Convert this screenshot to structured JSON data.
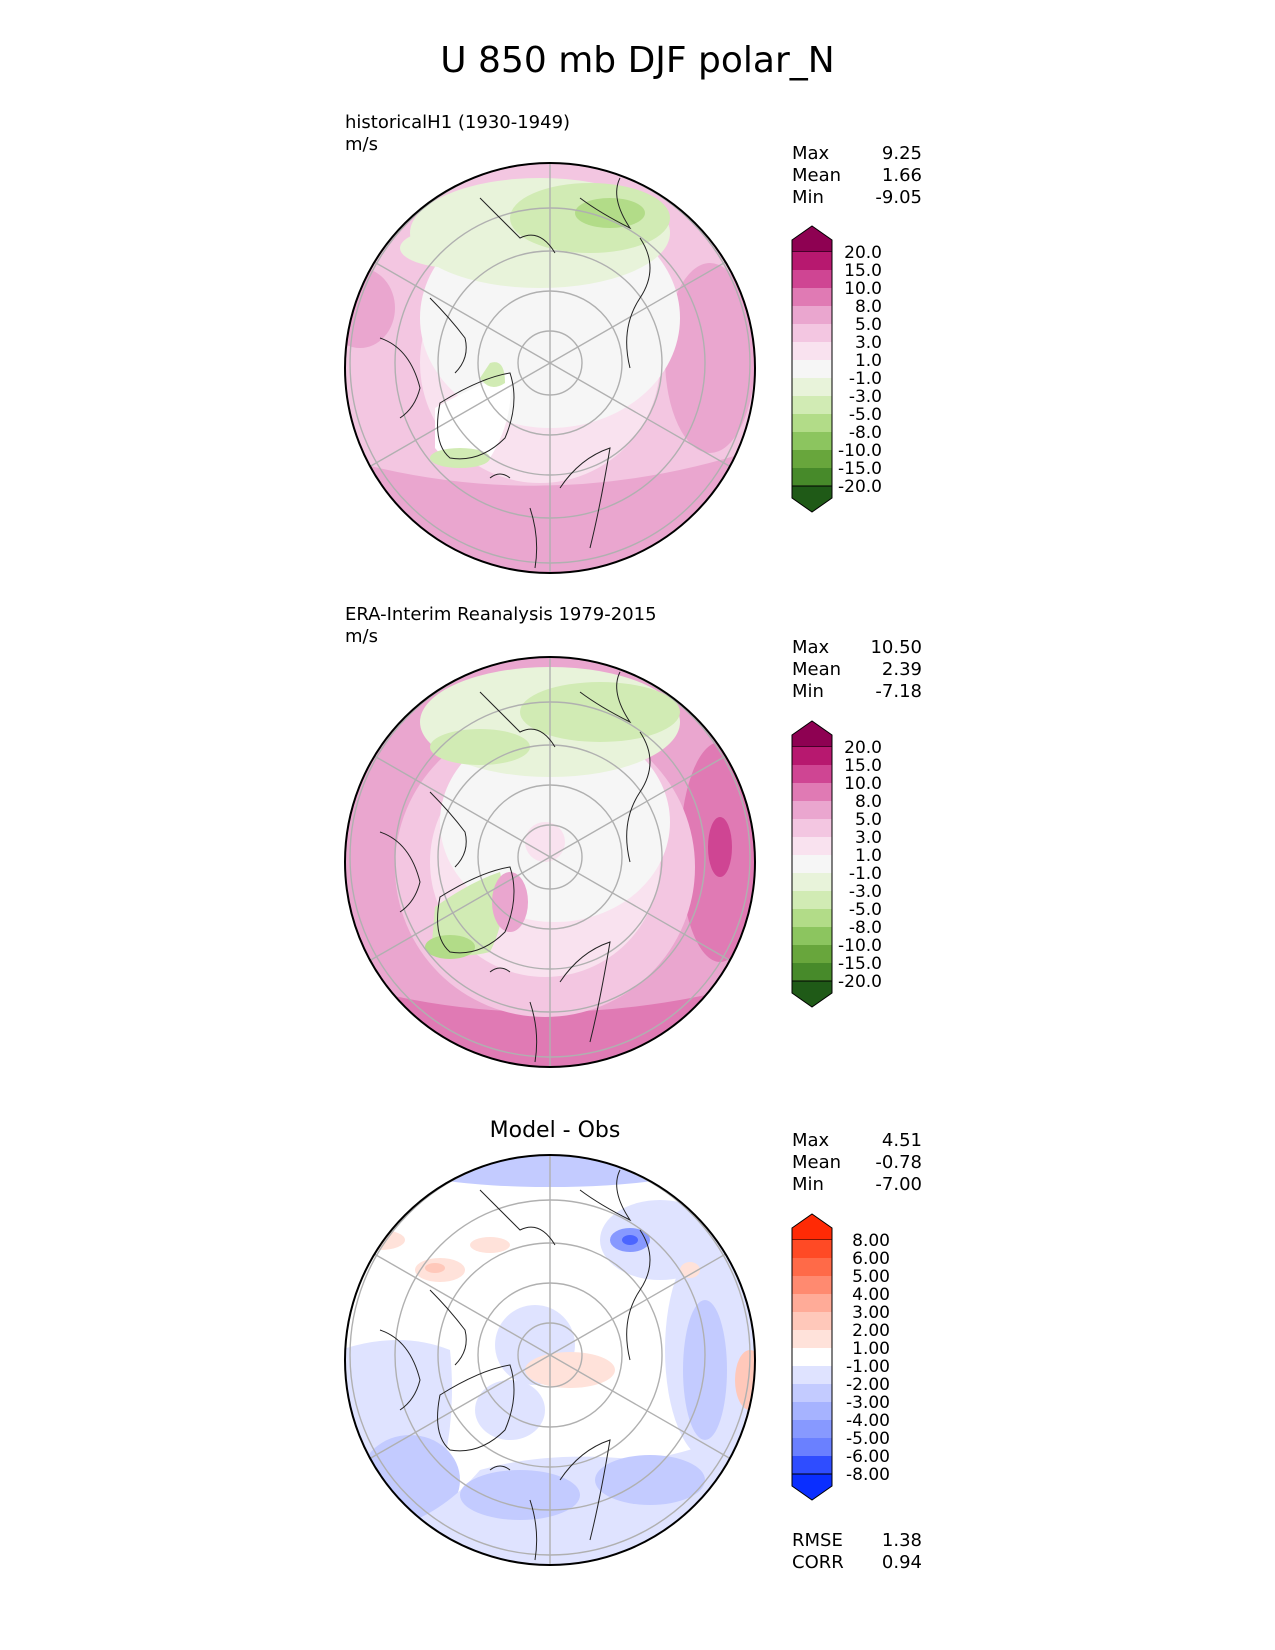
{
  "figure": {
    "title": "U 850 mb DJF polar_N"
  },
  "panels": [
    {
      "id": "test",
      "label_line1": "historicalH1 (1930-1949)",
      "label_line2": "m/s",
      "stats": [
        {
          "name": "Max",
          "value": "9.25"
        },
        {
          "name": "Mean",
          "value": "1.66"
        },
        {
          "name": "Min",
          "value": "-9.05"
        }
      ]
    },
    {
      "id": "reference",
      "label_line1": "ERA-Interim Reanalysis 1979-2015",
      "label_line2": "m/s",
      "stats": [
        {
          "name": "Max",
          "value": "10.50"
        },
        {
          "name": "Mean",
          "value": "2.39"
        },
        {
          "name": "Min",
          "value": "-7.18"
        }
      ]
    },
    {
      "id": "difference",
      "title": "Model - Obs",
      "stats": [
        {
          "name": "Max",
          "value": "4.51"
        },
        {
          "name": "Mean",
          "value": "-0.78"
        },
        {
          "name": "Min",
          "value": "-7.00"
        }
      ],
      "metrics": [
        {
          "name": "RMSE",
          "value": "1.38"
        },
        {
          "name": "CORR",
          "value": "0.94"
        }
      ]
    }
  ],
  "colorbars": {
    "field": {
      "levels": [
        "20.0",
        "15.0",
        "10.0",
        "8.0",
        "5.0",
        "3.0",
        "1.0",
        "-1.0",
        "-3.0",
        "-5.0",
        "-8.0",
        "-10.0",
        "-15.0",
        "-20.0"
      ],
      "colors": [
        "#8e0152",
        "#b7186f",
        "#cf4593",
        "#e07ab4",
        "#eaa6cf",
        "#f3c6e1",
        "#f9e2ef",
        "#f6f6f6",
        "#e8f3da",
        "#d1ebb4",
        "#b2dc88",
        "#8cc55f",
        "#68a63c",
        "#478a2a",
        "#2a6b1d",
        "#1f5a17"
      ]
    },
    "diff": {
      "levels": [
        "8.00",
        "6.00",
        "5.00",
        "4.00",
        "3.00",
        "2.00",
        "1.00",
        "-1.00",
        "-2.00",
        "-3.00",
        "-4.00",
        "-5.00",
        "-6.00",
        "-8.00"
      ],
      "colors": [
        "#ff2a05",
        "#ff4a25",
        "#ff6a48",
        "#ff8a70",
        "#ffab98",
        "#ffc8ba",
        "#ffe2da",
        "#ffffff",
        "#dfe3ff",
        "#c3cbff",
        "#a6b3ff",
        "#8799ff",
        "#6a80ff",
        "#4b65ff",
        "#2f4dff",
        "#0a2eff"
      ]
    }
  },
  "chart_data": [
    {
      "type": "heatmap",
      "projection": "north polar stereographic",
      "title": "historicalH1 (1930-1949)",
      "units": "m/s",
      "max": 9.25,
      "mean": 1.66,
      "min": -9.05,
      "levels": [
        -20,
        -15,
        -10,
        -8,
        -5,
        -3,
        -1,
        1,
        3,
        5,
        8,
        10,
        15,
        20
      ]
    },
    {
      "type": "heatmap",
      "projection": "north polar stereographic",
      "title": "ERA-Interim Reanalysis 1979-2015",
      "units": "m/s",
      "max": 10.5,
      "mean": 2.39,
      "min": -7.18,
      "levels": [
        -20,
        -15,
        -10,
        -8,
        -5,
        -3,
        -1,
        1,
        3,
        5,
        8,
        10,
        15,
        20
      ]
    },
    {
      "type": "heatmap",
      "projection": "north polar stereographic",
      "title": "Model - Obs",
      "max": 4.51,
      "mean": -0.78,
      "min": -7.0,
      "rmse": 1.38,
      "corr": 0.94,
      "levels": [
        -8,
        -6,
        -5,
        -4,
        -3,
        -2,
        -1,
        1,
        2,
        3,
        4,
        5,
        6,
        8
      ]
    }
  ]
}
